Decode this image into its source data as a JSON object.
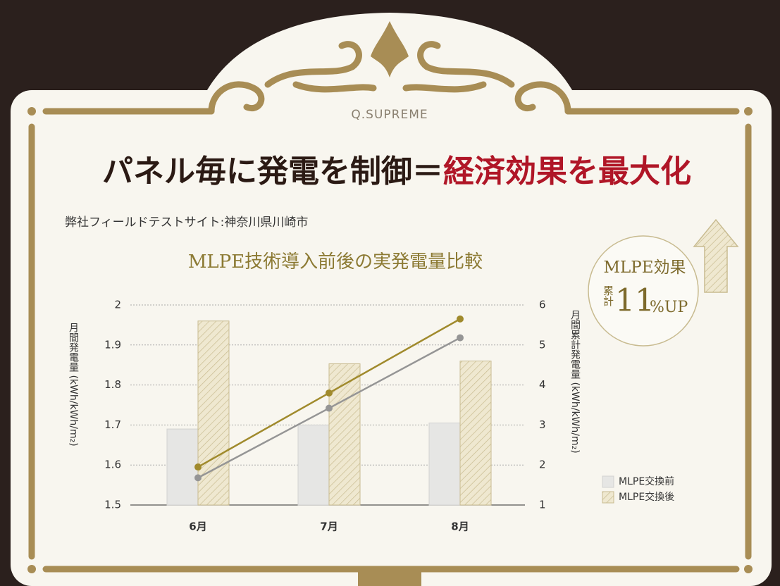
{
  "header": {
    "brand": "Q.SUPREME",
    "title_main": "パネル毎に発電を制御＝",
    "title_accent": "経済効果を最大化",
    "subtitle": "弊社フィールドテストサイト:神奈川県川崎市"
  },
  "badge": {
    "label": "MLPE効果",
    "cumulative": "累計",
    "number": "11",
    "suffix": "%UP"
  },
  "chart_data": {
    "type": "bar",
    "title": "MLPE技術導入前後の実発電量比較",
    "categories": [
      "6月",
      "7月",
      "8月"
    ],
    "y_label": "月間発電量 (kWh/kWh/m₂)",
    "y2_label": "月間累計発電量 (kWh/kWh/m₂)",
    "ylim": [
      1.5,
      2
    ],
    "yticks": [
      1.5,
      1.6,
      1.7,
      1.8,
      1.9,
      2
    ],
    "y2lim": [
      1,
      6
    ],
    "y2ticks": [
      1,
      2,
      3,
      4,
      5,
      6
    ],
    "grid": true,
    "legend": "lower right",
    "series": [
      {
        "name": "MLPE交換前",
        "type": "bar",
        "color": "#e6e6e4",
        "values": [
          1.69,
          1.7,
          1.705
        ]
      },
      {
        "name": "MLPE交換後",
        "type": "bar",
        "color": "#efe8d0",
        "hatch": true,
        "values": [
          1.96,
          1.853,
          1.86
        ]
      },
      {
        "type": "line",
        "axis": "y2",
        "color": "#a08a2c",
        "values": [
          1.95,
          3.8,
          5.65
        ]
      },
      {
        "type": "line",
        "axis": "y2",
        "color": "#959595",
        "values": [
          1.68,
          3.42,
          5.18
        ]
      }
    ]
  }
}
